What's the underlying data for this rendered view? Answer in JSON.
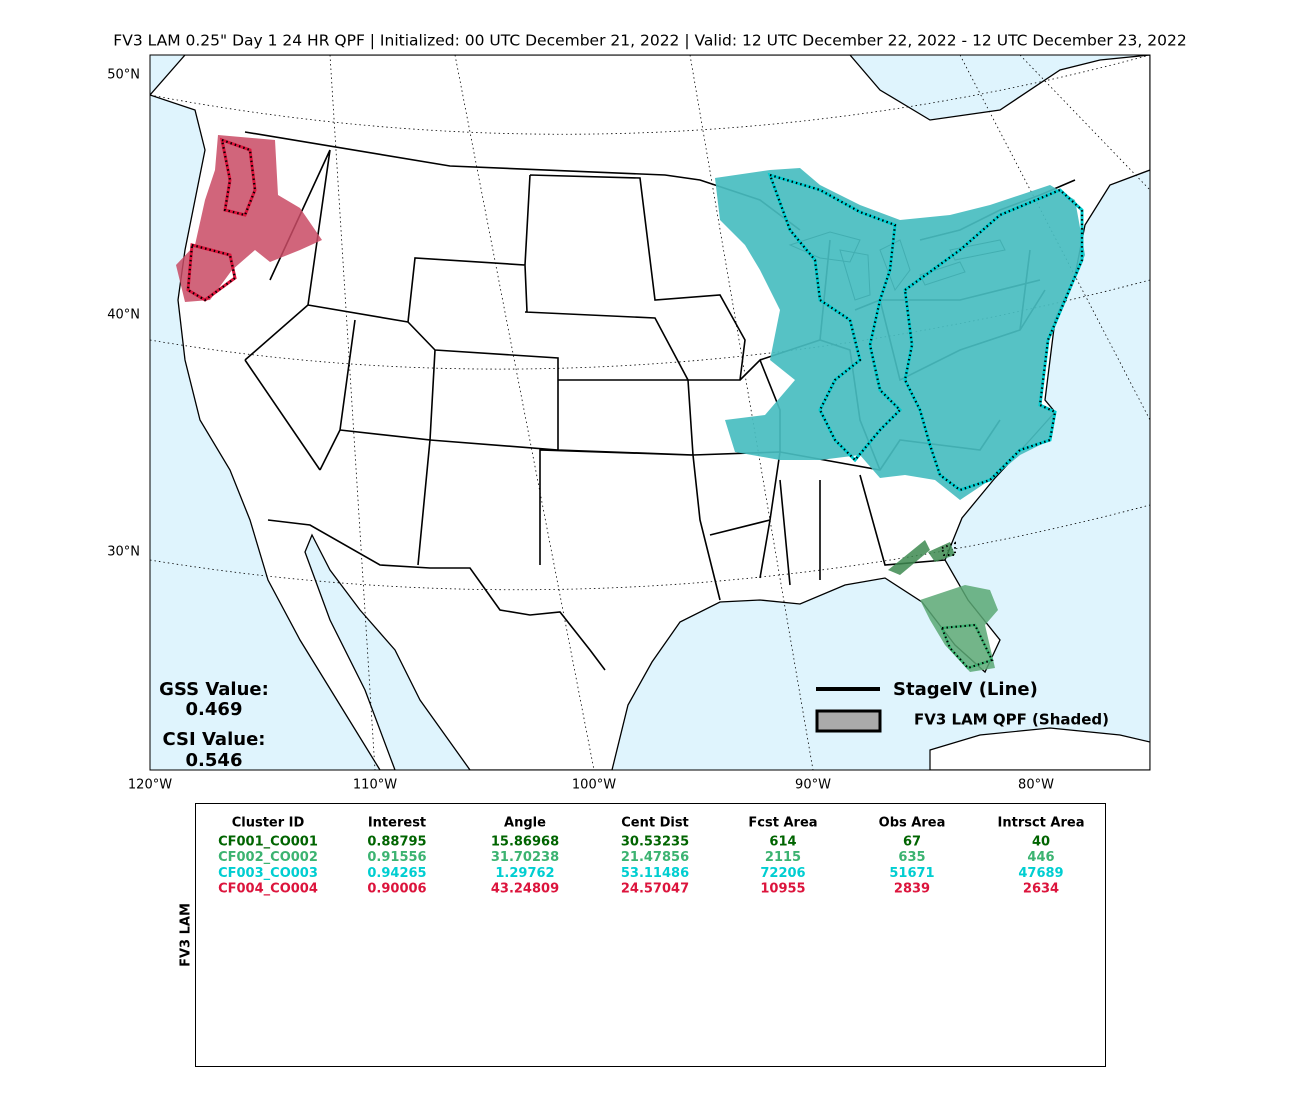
{
  "title": "FV3 LAM 0.25\" Day 1 24 HR QPF | Initialized: 00 UTC December 21, 2022 | Valid: 12 UTC December 22, 2022 - 12 UTC December 23, 2022",
  "map": {
    "lat_labels": [
      "50°N",
      "40°N",
      "30°N"
    ],
    "lon_labels": [
      "120°W",
      "110°W",
      "100°W",
      "90°W",
      "80°W"
    ],
    "legend": {
      "line": "StageIV (Line)",
      "shaded": "FV3 LAM QPF (Shaded)"
    },
    "scores": {
      "gss_label": "GSS Value:",
      "gss_value": "0.469",
      "csi_label": "CSI Value:",
      "csi_value": "0.546"
    }
  },
  "table": {
    "side_label": "FV3 LAM",
    "headers": [
      "Cluster ID",
      "Interest",
      "Angle",
      "Cent Dist",
      "Fcst Area",
      "Obs Area",
      "Intrsct Area"
    ],
    "rows": [
      {
        "color": "#006400",
        "cells": [
          "CF001_CO001",
          "0.88795",
          "15.86968",
          "30.53235",
          "614",
          "67",
          "40"
        ]
      },
      {
        "color": "#3cb371",
        "cells": [
          "CF002_CO002",
          "0.91556",
          "31.70238",
          "21.47856",
          "2115",
          "635",
          "446"
        ]
      },
      {
        "color": "#00ced1",
        "cells": [
          "CF003_CO003",
          "0.94265",
          "1.29762",
          "53.11486",
          "72206",
          "51671",
          "47689"
        ]
      },
      {
        "color": "#dc143c",
        "cells": [
          "CF004_CO004",
          "0.90006",
          "43.24809",
          "24.57047",
          "10955",
          "2839",
          "2634"
        ]
      }
    ]
  }
}
